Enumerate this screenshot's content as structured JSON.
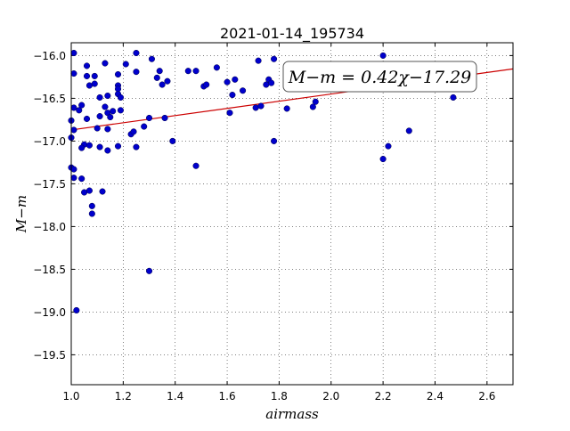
{
  "chart_data": {
    "type": "scatter",
    "title": "2021-01-14_195734",
    "xlabel": "airmass",
    "ylabel": "M−m",
    "xlim": [
      1.0,
      2.7
    ],
    "ylim": [
      -19.85,
      -15.85
    ],
    "x_ticks": [
      1.0,
      1.2,
      1.4,
      1.6,
      1.8,
      2.0,
      2.2,
      2.4,
      2.6
    ],
    "x_tick_labels": [
      "1.0",
      "1.2",
      "1.4",
      "1.6",
      "1.8",
      "2.0",
      "2.2",
      "2.4",
      "2.6"
    ],
    "y_ticks": [
      -16.0,
      -16.5,
      -17.0,
      -17.5,
      -18.0,
      -18.5,
      -19.0,
      -19.5
    ],
    "y_tick_labels": [
      "−16.0",
      "−16.5",
      "−17.0",
      "−17.5",
      "−18.0",
      "−18.5",
      "−19.0",
      "−19.5"
    ],
    "grid": true,
    "annotation": "M−m = 0.42χ−17.29",
    "fit": {
      "slope": 0.42,
      "intercept": -17.29,
      "color": "#cc0000"
    },
    "marker_color": "#0000cc",
    "points": [
      [
        1.01,
        -15.97
      ],
      [
        1.01,
        -16.21
      ],
      [
        1.01,
        -16.61
      ],
      [
        1.0,
        -16.76
      ],
      [
        1.01,
        -16.87
      ],
      [
        1.0,
        -16.96
      ],
      [
        1.0,
        -17.31
      ],
      [
        1.01,
        -17.43
      ],
      [
        1.01,
        -17.33
      ],
      [
        1.02,
        -18.98
      ],
      [
        1.03,
        -16.64
      ],
      [
        1.04,
        -16.58
      ],
      [
        1.05,
        -17.04
      ],
      [
        1.04,
        -17.08
      ],
      [
        1.06,
        -16.12
      ],
      [
        1.06,
        -16.24
      ],
      [
        1.07,
        -16.35
      ],
      [
        1.09,
        -16.24
      ],
      [
        1.09,
        -16.33
      ],
      [
        1.06,
        -16.74
      ],
      [
        1.07,
        -17.05
      ],
      [
        1.04,
        -17.44
      ],
      [
        1.05,
        -17.6
      ],
      [
        1.07,
        -17.58
      ],
      [
        1.08,
        -17.76
      ],
      [
        1.08,
        -17.85
      ],
      [
        1.11,
        -16.49
      ],
      [
        1.11,
        -16.71
      ],
      [
        1.1,
        -16.85
      ],
      [
        1.11,
        -17.07
      ],
      [
        1.12,
        -17.59
      ],
      [
        1.13,
        -16.09
      ],
      [
        1.13,
        -16.6
      ],
      [
        1.14,
        -16.67
      ],
      [
        1.14,
        -16.86
      ],
      [
        1.14,
        -16.47
      ],
      [
        1.15,
        -16.72
      ],
      [
        1.16,
        -16.65
      ],
      [
        1.14,
        -17.11
      ],
      [
        1.18,
        -16.22
      ],
      [
        1.18,
        -16.35
      ],
      [
        1.18,
        -16.39
      ],
      [
        1.18,
        -16.45
      ],
      [
        1.19,
        -16.49
      ],
      [
        1.19,
        -16.64
      ],
      [
        1.18,
        -17.06
      ],
      [
        1.21,
        -16.1
      ],
      [
        1.23,
        -16.92
      ],
      [
        1.24,
        -16.89
      ],
      [
        1.25,
        -15.97
      ],
      [
        1.25,
        -16.19
      ],
      [
        1.25,
        -17.07
      ],
      [
        1.28,
        -16.83
      ],
      [
        1.3,
        -16.73
      ],
      [
        1.31,
        -16.04
      ],
      [
        1.33,
        -16.26
      ],
      [
        1.34,
        -16.18
      ],
      [
        1.35,
        -16.34
      ],
      [
        1.36,
        -16.73
      ],
      [
        1.37,
        -16.3
      ],
      [
        1.3,
        -18.52
      ],
      [
        1.39,
        -17.0
      ],
      [
        1.45,
        -16.18
      ],
      [
        1.48,
        -16.18
      ],
      [
        1.48,
        -17.29
      ],
      [
        1.51,
        -16.36
      ],
      [
        1.52,
        -16.34
      ],
      [
        1.56,
        -16.14
      ],
      [
        1.6,
        -16.31
      ],
      [
        1.61,
        -16.67
      ],
      [
        1.63,
        -16.28
      ],
      [
        1.62,
        -16.46
      ],
      [
        1.66,
        -16.41
      ],
      [
        1.71,
        -16.61
      ],
      [
        1.72,
        -16.06
      ],
      [
        1.73,
        -16.59
      ],
      [
        1.75,
        -16.34
      ],
      [
        1.76,
        -16.28
      ],
      [
        1.78,
        -16.04
      ],
      [
        1.77,
        -16.32
      ],
      [
        1.78,
        -17.0
      ],
      [
        1.83,
        -16.62
      ],
      [
        1.93,
        -16.6
      ],
      [
        1.94,
        -16.54
      ],
      [
        2.2,
        -16.0
      ],
      [
        2.2,
        -17.21
      ],
      [
        2.22,
        -17.06
      ],
      [
        2.3,
        -16.88
      ],
      [
        2.47,
        -16.49
      ]
    ]
  }
}
